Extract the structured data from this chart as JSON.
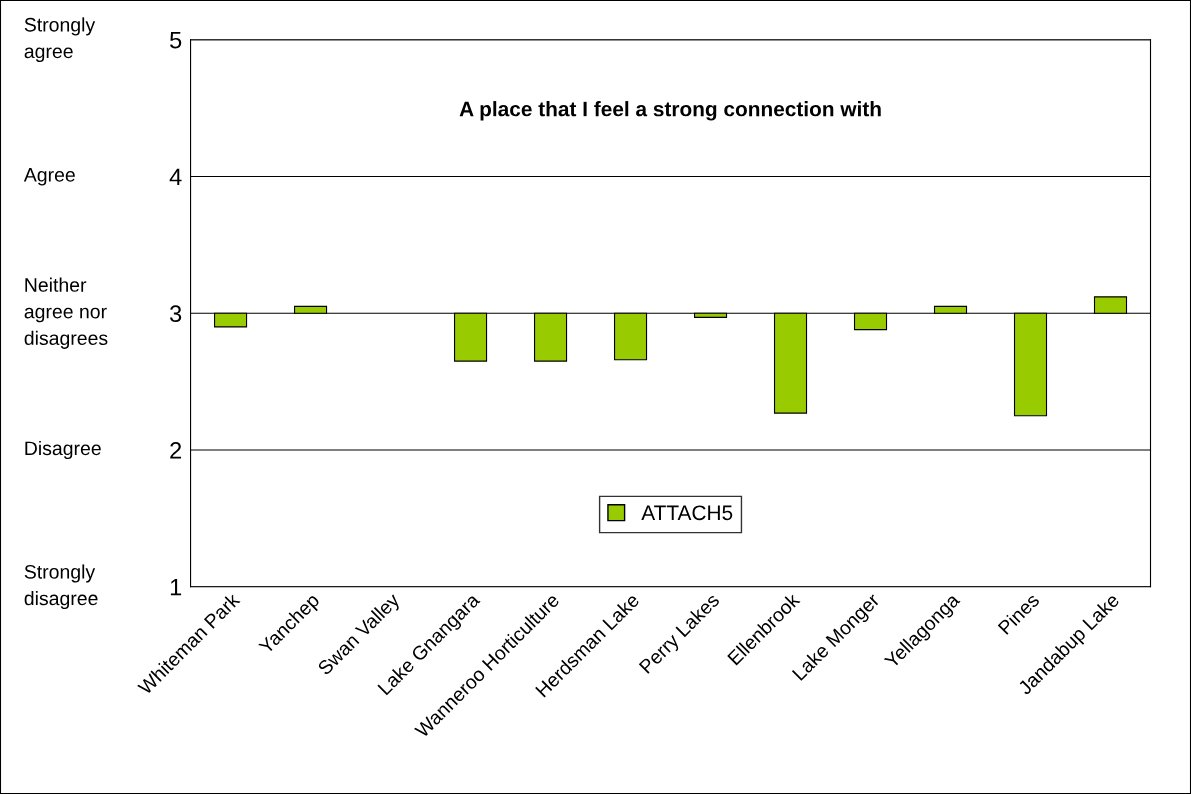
{
  "chart_data": {
    "type": "bar",
    "title": "A place that I feel a strong connection with",
    "categories": [
      "Whiteman Park",
      "Yanchep",
      "Swan Valley",
      "Lake Gnangara",
      "Wanneroo Horticulture",
      "Herdsman Lake",
      "Perry Lakes",
      "Ellenbrook",
      "Lake Monger",
      "Yellagonga",
      "Pines",
      "Jandabup Lake"
    ],
    "series": [
      {
        "name": "ATTACH5",
        "color": "#99cc00",
        "values": [
          -0.1,
          0.05,
          null,
          -0.35,
          -0.35,
          -0.34,
          -0.03,
          -0.73,
          -0.12,
          0.05,
          -0.75,
          0.12
        ],
        "base": [
          3,
          3,
          null,
          3,
          3,
          3,
          3,
          3,
          3,
          3,
          3,
          3
        ]
      }
    ],
    "ylim": [
      1,
      5
    ],
    "yticks": [
      1,
      2,
      3,
      4,
      5
    ],
    "annotations": [
      "Strongly\nagree",
      "Agree",
      "Neither\nagree nor\ndisagrees",
      "Disagree",
      "Strongly\ndisagree"
    ],
    "grid": "y",
    "legend": "bottom"
  }
}
